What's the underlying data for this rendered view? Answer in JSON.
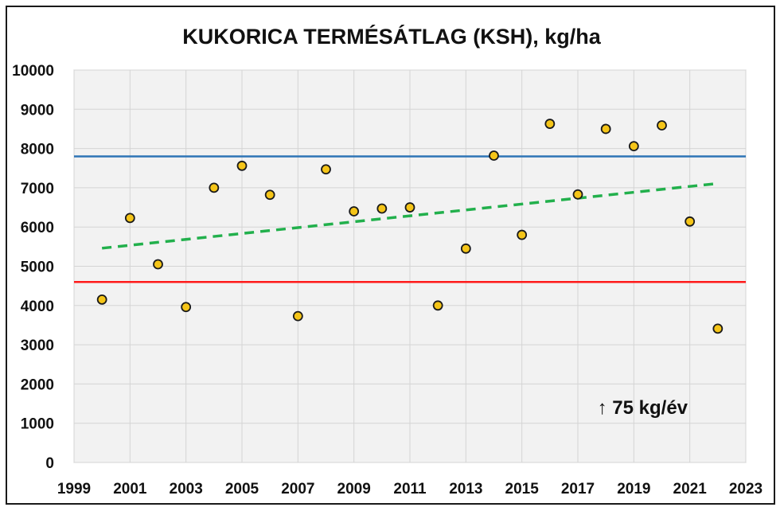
{
  "chart_data": {
    "type": "scatter",
    "title": "KUKORICA TERMÉSÁTLAG (KSH), kg/ha",
    "xlabel": "",
    "ylabel": "",
    "xlim": [
      1999,
      2023
    ],
    "ylim": [
      0,
      10000
    ],
    "x_ticks": [
      1999,
      2001,
      2003,
      2005,
      2007,
      2009,
      2011,
      2013,
      2015,
      2017,
      2019,
      2021,
      2023
    ],
    "y_ticks": [
      0,
      1000,
      2000,
      3000,
      4000,
      5000,
      6000,
      7000,
      8000,
      9000,
      10000
    ],
    "grid": true,
    "legend": "none",
    "series": [
      {
        "x": [
          2000,
          2001,
          2002,
          2003,
          2004,
          2005,
          2006,
          2007,
          2008,
          2009,
          2010,
          2011,
          2012,
          2013,
          2014,
          2015,
          2016,
          2017,
          2018,
          2019,
          2020,
          2021,
          2022
        ],
        "y": [
          4150,
          6230,
          5050,
          3960,
          7000,
          7560,
          6820,
          3730,
          7470,
          6400,
          6470,
          6500,
          4000,
          5450,
          7820,
          5800,
          8630,
          6830,
          8500,
          8060,
          8590,
          6140,
          3410
        ],
        "color": "#f5c518"
      }
    ],
    "reference_lines": [
      {
        "y": 7800,
        "color": "#2e75b6"
      },
      {
        "y": 4600,
        "color": "#ff1a1a"
      }
    ],
    "trend_line": {
      "x": [
        2000,
        2022
      ],
      "y": [
        5460,
        7110
      ],
      "color": "#22b04c",
      "style": "dashed"
    },
    "annotation": {
      "text": "↑ 75 kg/év",
      "x": 2017.7,
      "y": 1400
    }
  }
}
